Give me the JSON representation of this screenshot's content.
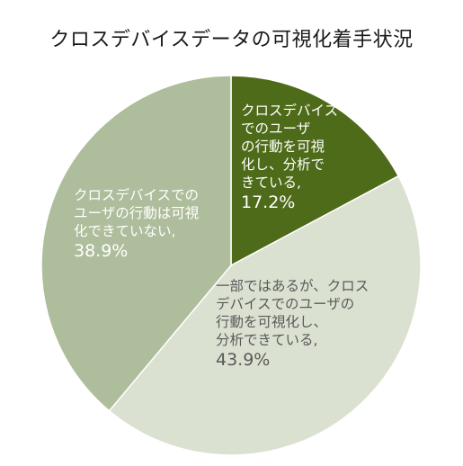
{
  "chart_data": {
    "type": "pie",
    "title": "クロスデバイスデータの可視化着手状況",
    "slices": [
      {
        "label": "クロスデバイスでのユーザの行動を可視化し、分析できている,",
        "value": 17.2,
        "display": "17.2%",
        "color": "#4e6b19"
      },
      {
        "label": "一部ではあるが、クロスデバイスでのユーザの行動を可視化し、分析できている,",
        "value": 43.9,
        "display": "43.9%",
        "color": "#dbe1d1"
      },
      {
        "label": "クロスデバイスでのユーザの行動は可視化できていない,",
        "value": 38.9,
        "display": "38.9%",
        "color": "#aebd9b"
      }
    ],
    "labels_wrapped": [
      [
        "クロスデバイス",
        "でのユーザ",
        "の行動を可視",
        "化し、分析で",
        "きている,"
      ],
      [
        "一部ではあるが、クロス",
        "デバイスでのユーザの",
        "行動を可視化し、",
        "分析できている,"
      ],
      [
        "クロスデバイスでの",
        "ユーザの行動は可視",
        "化できていない,"
      ]
    ],
    "start_angle_deg": 0,
    "direction": "clockwise"
  }
}
